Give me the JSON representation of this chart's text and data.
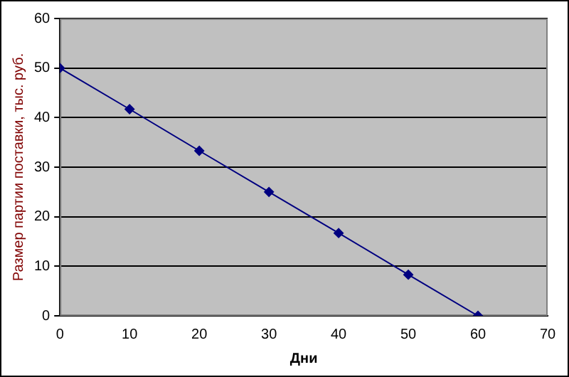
{
  "chart_data": {
    "type": "line",
    "xlabel": "Дни",
    "ylabel": "Размер партии поставки, тыс. руб.",
    "x": [
      0,
      10,
      20,
      30,
      40,
      50,
      60
    ],
    "series": [
      {
        "color": "#000080",
        "values": [
          50,
          41.7,
          33.3,
          25,
          16.7,
          8.3,
          0
        ]
      }
    ],
    "xlim": [
      0,
      70
    ],
    "xticks": [
      0,
      10,
      20,
      30,
      40,
      50,
      60,
      70
    ],
    "ylim": [
      0,
      60
    ],
    "yticks": [
      0,
      10,
      20,
      30,
      40,
      50,
      60
    ],
    "grid": "y",
    "legend": false,
    "marker": "diamond",
    "line_style": "solid"
  }
}
